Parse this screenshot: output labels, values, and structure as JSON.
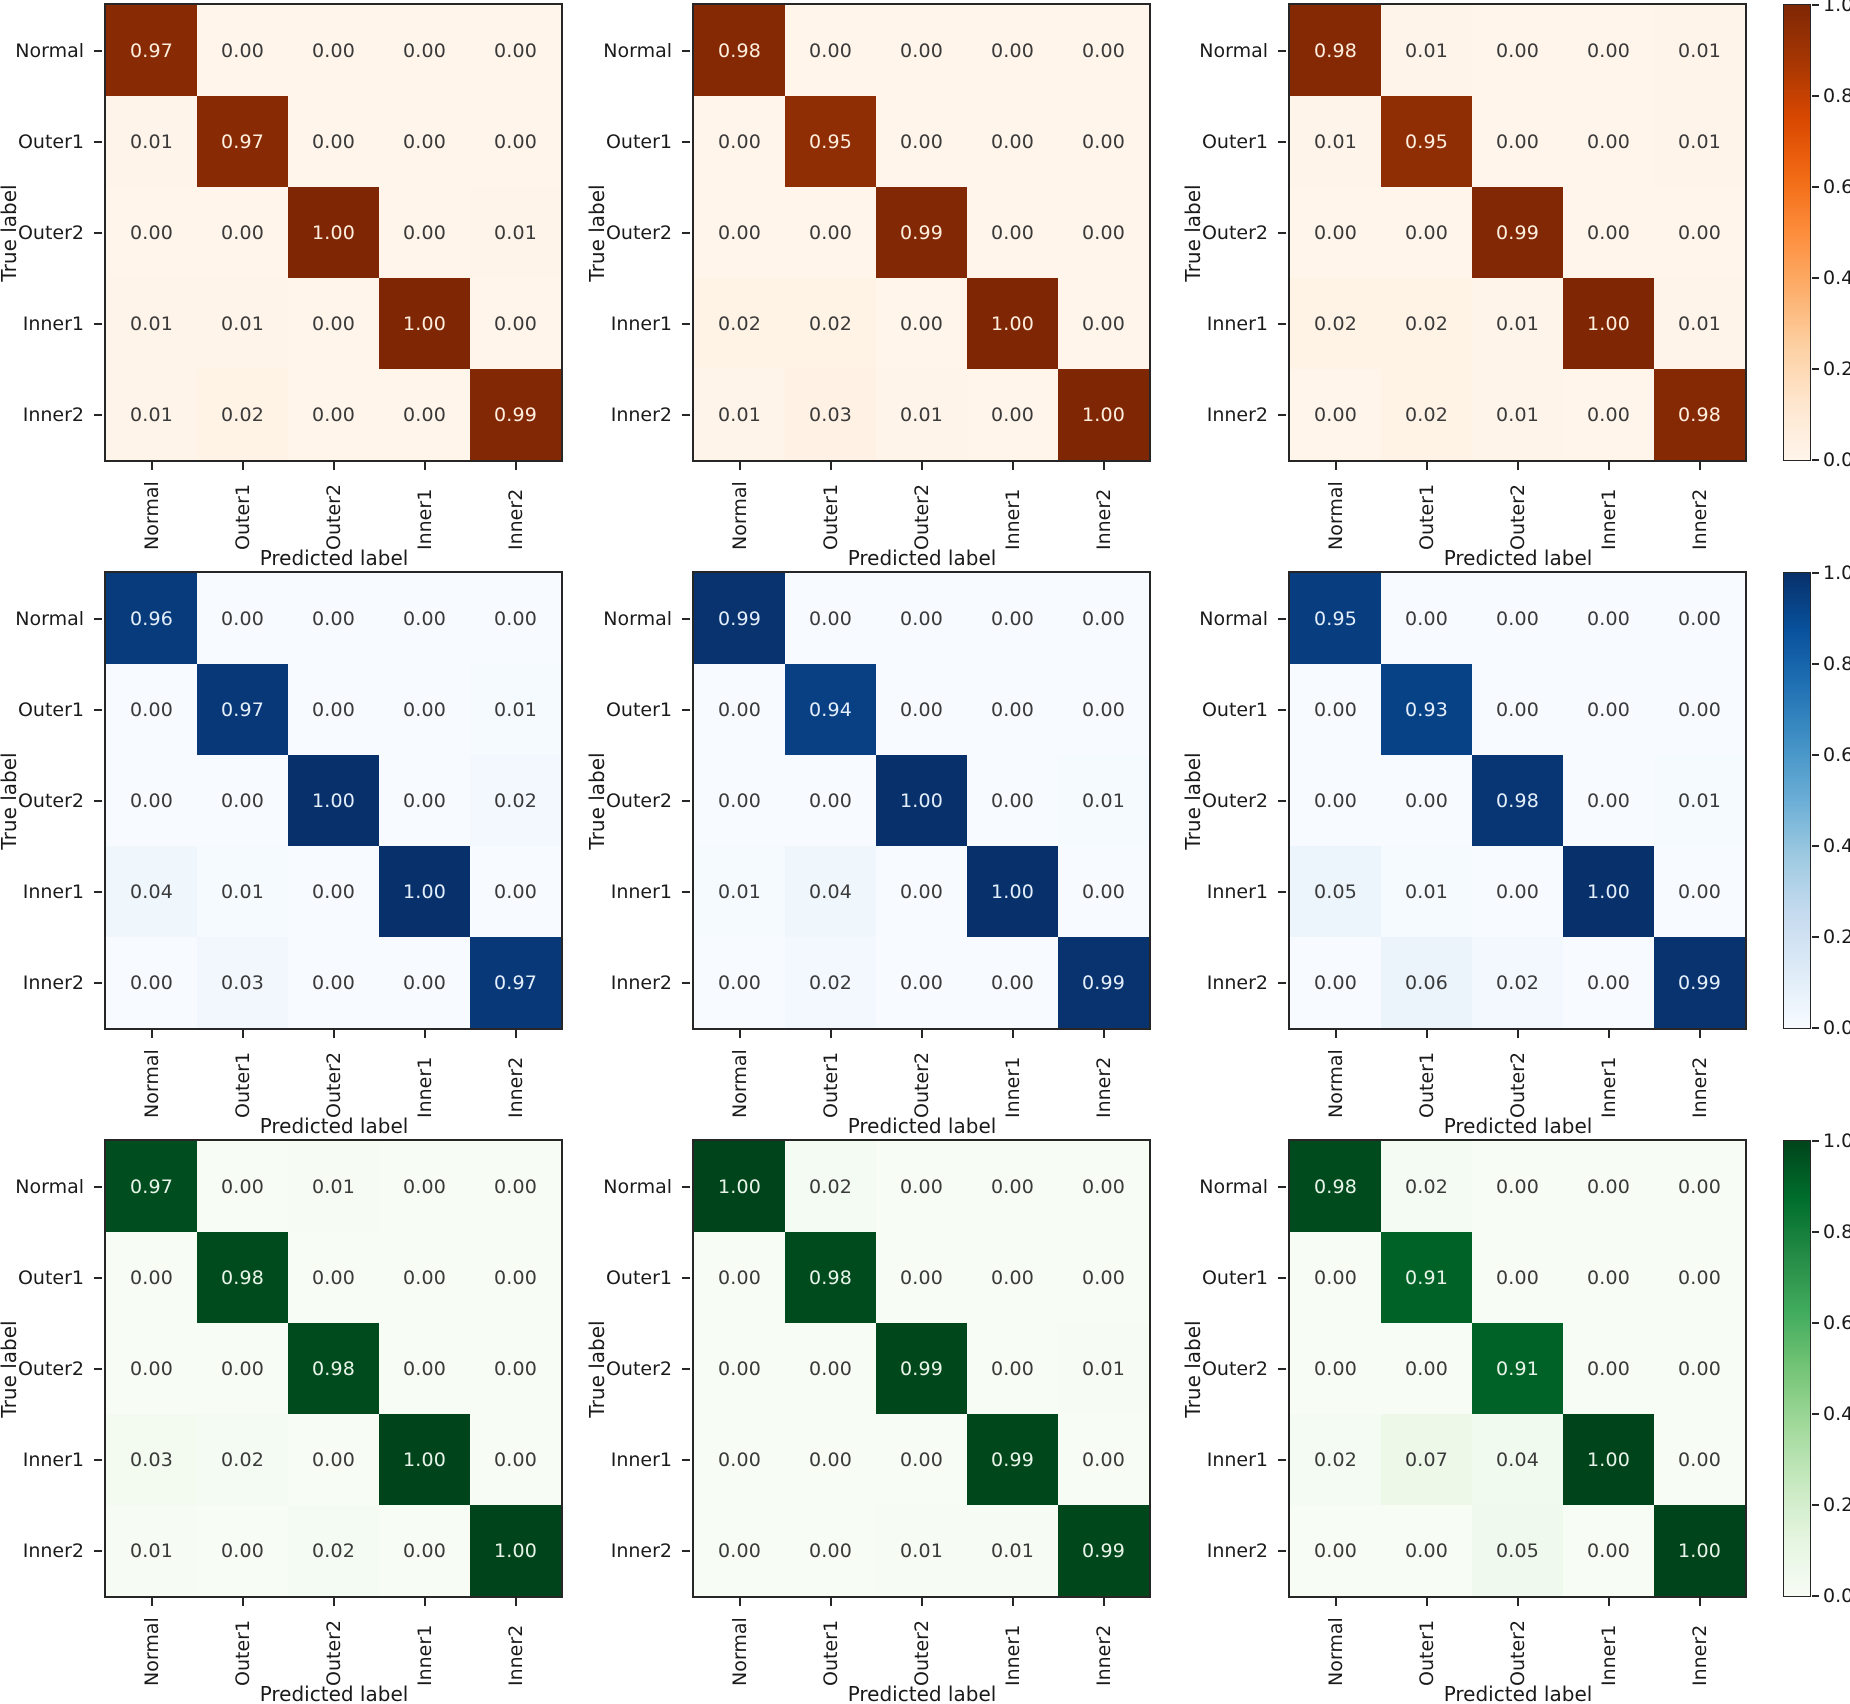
{
  "figure": {
    "xlabel": "Predicted label",
    "ylabel": "True label",
    "classes": [
      "Normal",
      "Outer1",
      "Outer2",
      "Inner1",
      "Inner2"
    ],
    "colorbar_ticks": [
      "1.0",
      "0.8",
      "0.6",
      "0.4",
      "0.2",
      "0.0"
    ],
    "spine_color": "#262626",
    "background": "#ffffff"
  },
  "colormaps": {
    "Oranges": {
      "anchors": [
        "#fff5eb",
        "#fee6ce",
        "#fdd0a2",
        "#fdae6b",
        "#fd8d3c",
        "#f16913",
        "#d94801",
        "#a63603",
        "#7f2704"
      ],
      "light_text": "#fdeede",
      "dark_text": "#3a3a3a"
    },
    "Blues": {
      "anchors": [
        "#f7fbff",
        "#deebf7",
        "#c6dbef",
        "#9ecae1",
        "#6baed6",
        "#4292c6",
        "#2171b5",
        "#08519c",
        "#08306b"
      ],
      "light_text": "#e3eefa",
      "dark_text": "#3a3a3a"
    },
    "Greens": {
      "anchors": [
        "#f7fcf5",
        "#e5f5e0",
        "#c7e9c0",
        "#a1d99b",
        "#74c476",
        "#41ab5d",
        "#238b45",
        "#006d2c",
        "#00441b"
      ],
      "light_text": "#e8f4e8",
      "dark_text": "#3a3a3a"
    }
  },
  "chart_data": [
    {
      "type": "heatmap",
      "grid_row": 0,
      "grid_col": 0,
      "colormap": "Oranges",
      "xlabel": "Predicted label",
      "ylabel": "True label",
      "x_categories": [
        "Normal",
        "Outer1",
        "Outer2",
        "Inner1",
        "Inner2"
      ],
      "y_categories": [
        "Normal",
        "Outer1",
        "Outer2",
        "Inner1",
        "Inner2"
      ],
      "vmin": 0.0,
      "vmax": 1.0,
      "values": [
        [
          0.97,
          0.0,
          0.0,
          0.0,
          0.0
        ],
        [
          0.01,
          0.97,
          0.0,
          0.0,
          0.0
        ],
        [
          0.0,
          0.0,
          1.0,
          0.0,
          0.01
        ],
        [
          0.01,
          0.01,
          0.0,
          1.0,
          0.0
        ],
        [
          0.01,
          0.02,
          0.0,
          0.0,
          0.99
        ]
      ]
    },
    {
      "type": "heatmap",
      "grid_row": 0,
      "grid_col": 1,
      "colormap": "Oranges",
      "xlabel": "Predicted label",
      "ylabel": "True label",
      "x_categories": [
        "Normal",
        "Outer1",
        "Outer2",
        "Inner1",
        "Inner2"
      ],
      "y_categories": [
        "Normal",
        "Outer1",
        "Outer2",
        "Inner1",
        "Inner2"
      ],
      "vmin": 0.0,
      "vmax": 1.0,
      "values": [
        [
          0.98,
          0.0,
          0.0,
          0.0,
          0.0
        ],
        [
          0.0,
          0.95,
          0.0,
          0.0,
          0.0
        ],
        [
          0.0,
          0.0,
          0.99,
          0.0,
          0.0
        ],
        [
          0.02,
          0.02,
          0.0,
          1.0,
          0.0
        ],
        [
          0.01,
          0.03,
          0.01,
          0.0,
          1.0
        ]
      ]
    },
    {
      "type": "heatmap",
      "grid_row": 0,
      "grid_col": 2,
      "colormap": "Oranges",
      "xlabel": "Predicted label",
      "ylabel": "True label",
      "x_categories": [
        "Normal",
        "Outer1",
        "Outer2",
        "Inner1",
        "Inner2"
      ],
      "y_categories": [
        "Normal",
        "Outer1",
        "Outer2",
        "Inner1",
        "Inner2"
      ],
      "vmin": 0.0,
      "vmax": 1.0,
      "values": [
        [
          0.98,
          0.01,
          0.0,
          0.0,
          0.01
        ],
        [
          0.01,
          0.95,
          0.0,
          0.0,
          0.01
        ],
        [
          0.0,
          0.0,
          0.99,
          0.0,
          0.0
        ],
        [
          0.02,
          0.02,
          0.01,
          1.0,
          0.01
        ],
        [
          0.0,
          0.02,
          0.01,
          0.0,
          0.98
        ]
      ]
    },
    {
      "type": "heatmap",
      "grid_row": 1,
      "grid_col": 0,
      "colormap": "Blues",
      "xlabel": "Predicted label",
      "ylabel": "True label",
      "x_categories": [
        "Normal",
        "Outer1",
        "Outer2",
        "Inner1",
        "Inner2"
      ],
      "y_categories": [
        "Normal",
        "Outer1",
        "Outer2",
        "Inner1",
        "Inner2"
      ],
      "vmin": 0.0,
      "vmax": 1.0,
      "values": [
        [
          0.96,
          0.0,
          0.0,
          0.0,
          0.0
        ],
        [
          0.0,
          0.97,
          0.0,
          0.0,
          0.01
        ],
        [
          0.0,
          0.0,
          1.0,
          0.0,
          0.02
        ],
        [
          0.04,
          0.01,
          0.0,
          1.0,
          0.0
        ],
        [
          0.0,
          0.03,
          0.0,
          0.0,
          0.97
        ]
      ]
    },
    {
      "type": "heatmap",
      "grid_row": 1,
      "grid_col": 1,
      "colormap": "Blues",
      "xlabel": "Predicted label",
      "ylabel": "True label",
      "x_categories": [
        "Normal",
        "Outer1",
        "Outer2",
        "Inner1",
        "Inner2"
      ],
      "y_categories": [
        "Normal",
        "Outer1",
        "Outer2",
        "Inner1",
        "Inner2"
      ],
      "vmin": 0.0,
      "vmax": 1.0,
      "values": [
        [
          0.99,
          0.0,
          0.0,
          0.0,
          0.0
        ],
        [
          0.0,
          0.94,
          0.0,
          0.0,
          0.0
        ],
        [
          0.0,
          0.0,
          1.0,
          0.0,
          0.01
        ],
        [
          0.01,
          0.04,
          0.0,
          1.0,
          0.0
        ],
        [
          0.0,
          0.02,
          0.0,
          0.0,
          0.99
        ]
      ]
    },
    {
      "type": "heatmap",
      "grid_row": 1,
      "grid_col": 2,
      "colormap": "Blues",
      "xlabel": "Predicted label",
      "ylabel": "True label",
      "x_categories": [
        "Normal",
        "Outer1",
        "Outer2",
        "Inner1",
        "Inner2"
      ],
      "y_categories": [
        "Normal",
        "Outer1",
        "Outer2",
        "Inner1",
        "Inner2"
      ],
      "vmin": 0.0,
      "vmax": 1.0,
      "values": [
        [
          0.95,
          0.0,
          0.0,
          0.0,
          0.0
        ],
        [
          0.0,
          0.93,
          0.0,
          0.0,
          0.0
        ],
        [
          0.0,
          0.0,
          0.98,
          0.0,
          0.01
        ],
        [
          0.05,
          0.01,
          0.0,
          1.0,
          0.0
        ],
        [
          0.0,
          0.06,
          0.02,
          0.0,
          0.99
        ]
      ]
    },
    {
      "type": "heatmap",
      "grid_row": 2,
      "grid_col": 0,
      "colormap": "Greens",
      "xlabel": "Predicted label",
      "ylabel": "True label",
      "x_categories": [
        "Normal",
        "Outer1",
        "Outer2",
        "Inner1",
        "Inner2"
      ],
      "y_categories": [
        "Normal",
        "Outer1",
        "Outer2",
        "Inner1",
        "Inner2"
      ],
      "vmin": 0.0,
      "vmax": 1.0,
      "values": [
        [
          0.97,
          0.0,
          0.01,
          0.0,
          0.0
        ],
        [
          0.0,
          0.98,
          0.0,
          0.0,
          0.0
        ],
        [
          0.0,
          0.0,
          0.98,
          0.0,
          0.0
        ],
        [
          0.03,
          0.02,
          0.0,
          1.0,
          0.0
        ],
        [
          0.01,
          0.0,
          0.02,
          0.0,
          1.0
        ]
      ]
    },
    {
      "type": "heatmap",
      "grid_row": 2,
      "grid_col": 1,
      "colormap": "Greens",
      "xlabel": "Predicted label",
      "ylabel": "True label",
      "x_categories": [
        "Normal",
        "Outer1",
        "Outer2",
        "Inner1",
        "Inner2"
      ],
      "y_categories": [
        "Normal",
        "Outer1",
        "Outer2",
        "Inner1",
        "Inner2"
      ],
      "vmin": 0.0,
      "vmax": 1.0,
      "values": [
        [
          1.0,
          0.02,
          0.0,
          0.0,
          0.0
        ],
        [
          0.0,
          0.98,
          0.0,
          0.0,
          0.0
        ],
        [
          0.0,
          0.0,
          0.99,
          0.0,
          0.01
        ],
        [
          0.0,
          0.0,
          0.0,
          0.99,
          0.0
        ],
        [
          0.0,
          0.0,
          0.01,
          0.01,
          0.99
        ]
      ]
    },
    {
      "type": "heatmap",
      "grid_row": 2,
      "grid_col": 2,
      "colormap": "Greens",
      "xlabel": "Predicted label",
      "ylabel": "True label",
      "x_categories": [
        "Normal",
        "Outer1",
        "Outer2",
        "Inner1",
        "Inner2"
      ],
      "y_categories": [
        "Normal",
        "Outer1",
        "Outer2",
        "Inner1",
        "Inner2"
      ],
      "vmin": 0.0,
      "vmax": 1.0,
      "values": [
        [
          0.98,
          0.02,
          0.0,
          0.0,
          0.0
        ],
        [
          0.0,
          0.91,
          0.0,
          0.0,
          0.0
        ],
        [
          0.0,
          0.0,
          0.91,
          0.0,
          0.0
        ],
        [
          0.02,
          0.07,
          0.04,
          1.0,
          0.0
        ],
        [
          0.0,
          0.0,
          0.05,
          0.0,
          1.0
        ]
      ]
    }
  ]
}
